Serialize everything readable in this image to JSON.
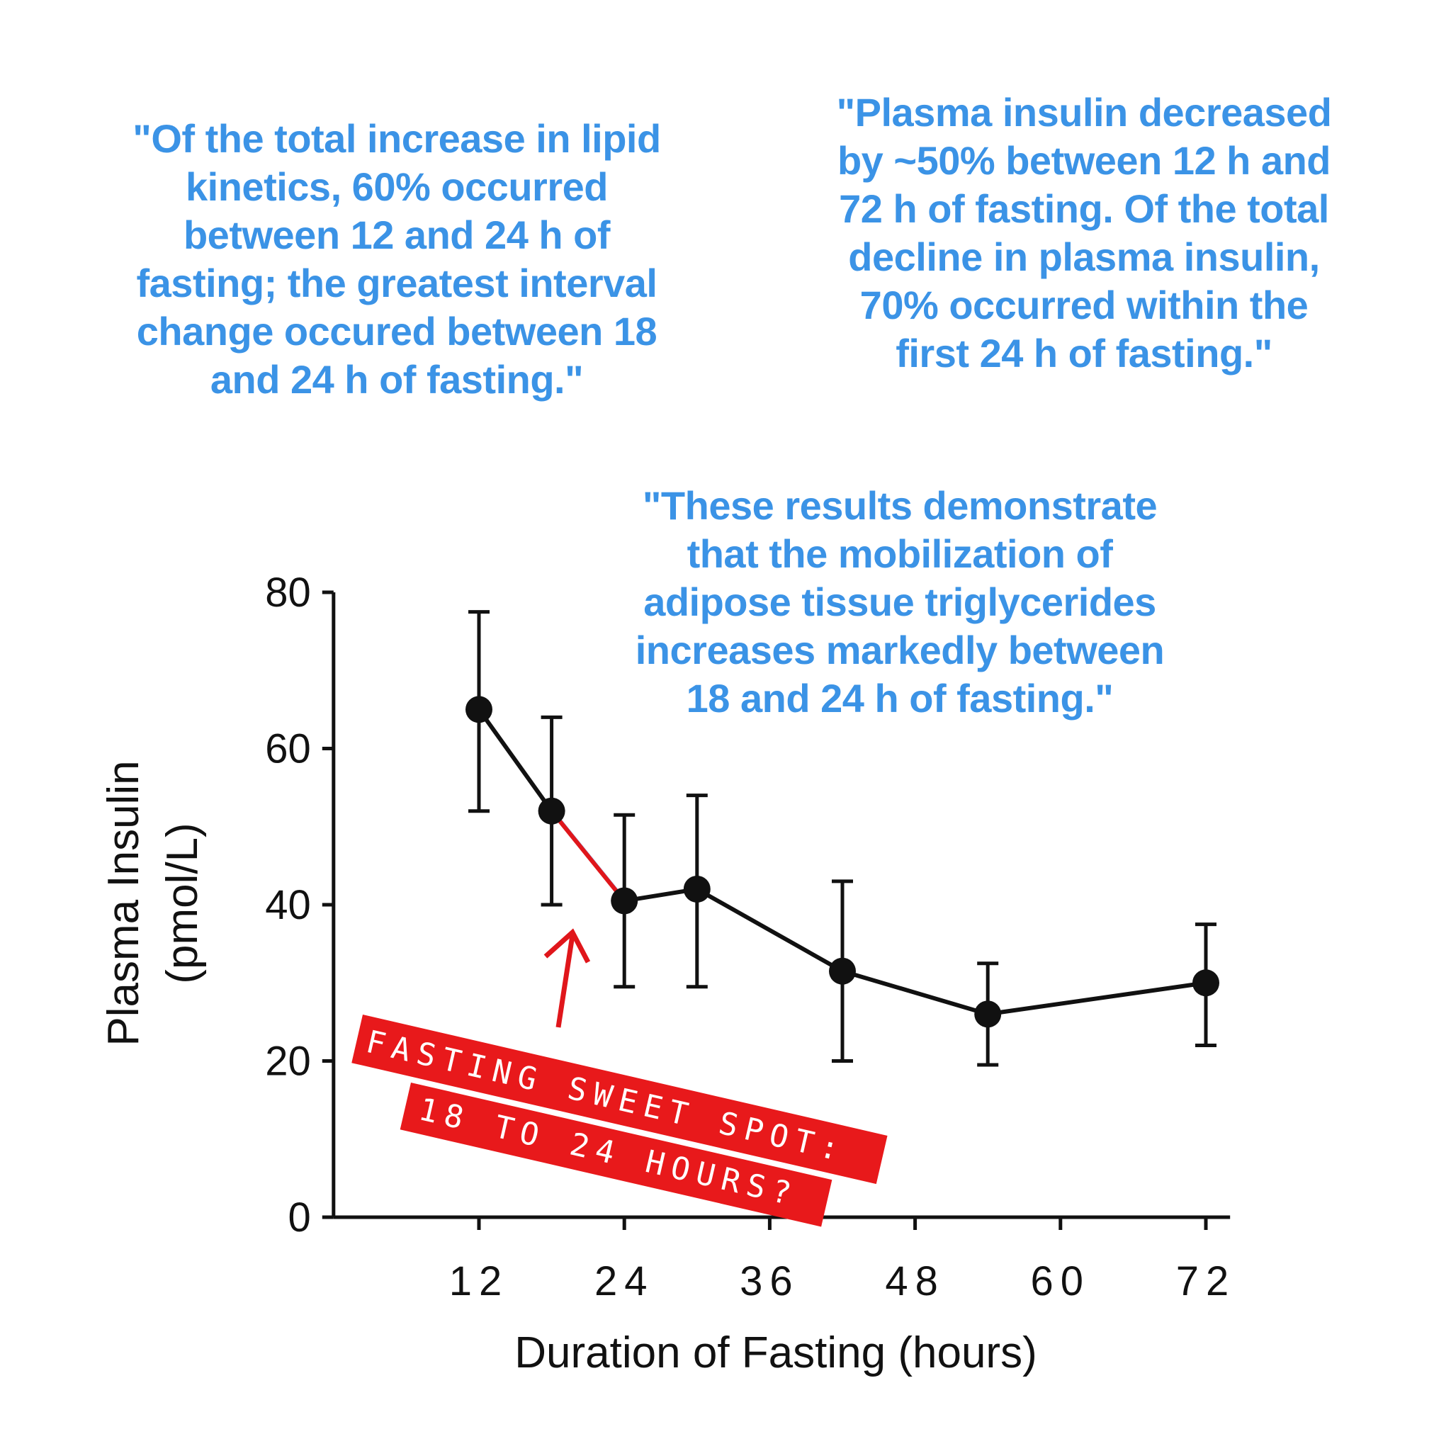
{
  "quotes": {
    "left": "\"Of the total increase in lipid\nkinetics, 60% occurred\nbetween 12 and 24 h of\nfasting; the greatest interval\nchange occured between 18\nand 24 h of fasting.\"",
    "right": "\"Plasma insulin decreased\nby ~50% between 12 h and\n72 h of fasting. Of the total\ndecline in plasma insulin,\n70% occurred within the\nfirst 24 h of fasting.\"",
    "middle": "\"These results demonstrate\nthat the mobilization of\nadipose tissue triglycerides\nincreases markedly between\n18 and 24 h of fasting.\""
  },
  "callout": {
    "line1": "FASTING SWEET SPOT:",
    "line2": "18 TO 24 HOURS?"
  },
  "chart_data": {
    "type": "line",
    "title": "",
    "xlabel": "Duration of Fasting (hours)",
    "ylabel_line1": "Plasma  Insulin",
    "ylabel_line2": "(pmol/L)",
    "xlim": [
      0,
      74
    ],
    "ylim": [
      0,
      80
    ],
    "x_ticks": [
      12,
      24,
      36,
      48,
      60,
      72
    ],
    "y_ticks": [
      0,
      20,
      40,
      60,
      80
    ],
    "series": [
      {
        "name": "Plasma Insulin",
        "x": [
          12,
          18,
          24,
          30,
          42,
          54,
          72
        ],
        "y": [
          65,
          52,
          40.5,
          42,
          31.5,
          26,
          30
        ],
        "err_low": [
          52,
          40,
          29.5,
          29.5,
          20,
          19.5,
          22
        ],
        "err_high": [
          77.5,
          64,
          51.5,
          54,
          43,
          32.5,
          37.5
        ]
      }
    ],
    "highlight": {
      "x_start": 18,
      "x_end": 24,
      "color": "#e0161b"
    },
    "colors": {
      "line": "#111111",
      "highlight": "#e0161b",
      "callout_bg": "#e8191b",
      "quote_text": "#3b93e6"
    }
  }
}
